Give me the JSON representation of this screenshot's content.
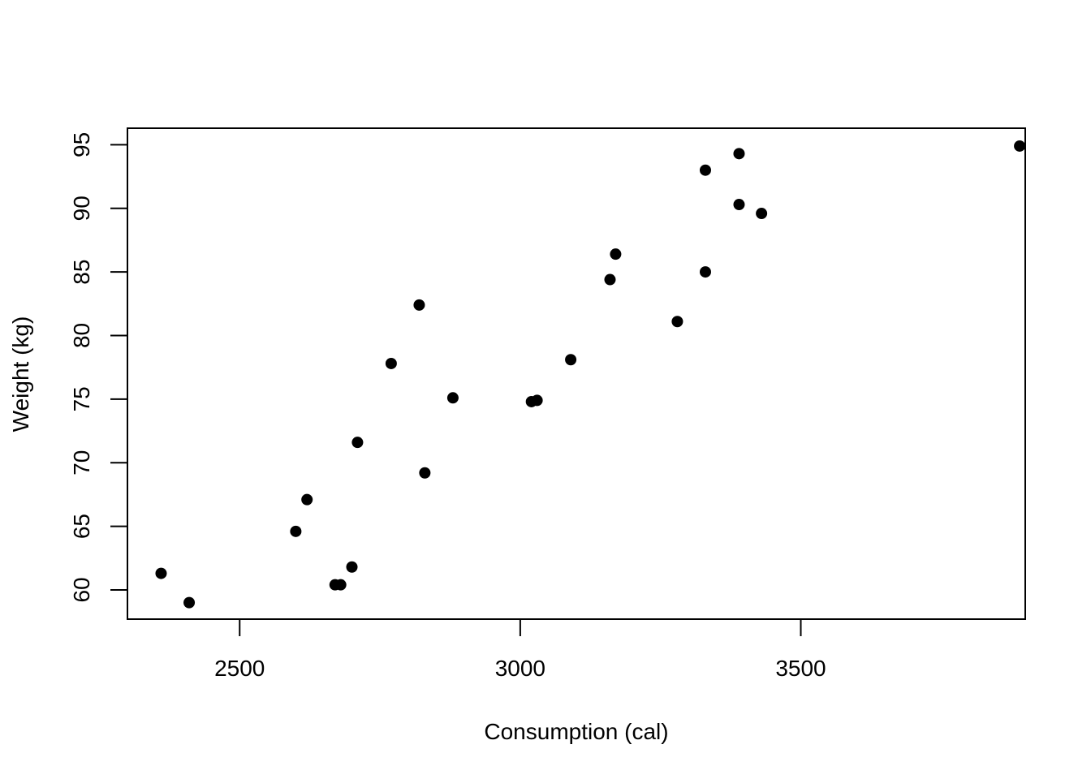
{
  "chart_data": {
    "type": "scatter",
    "title": "",
    "xlabel": "Consumption (cal)",
    "ylabel": "Weight (kg)",
    "xlim": [
      2300,
      3900
    ],
    "ylim": [
      57.7,
      96.3
    ],
    "xticks": [
      2500,
      3000,
      3500
    ],
    "yticks": [
      60,
      65,
      70,
      75,
      80,
      85,
      90,
      95
    ],
    "grid": false,
    "legend": "none",
    "point_color": "#000000",
    "points": [
      {
        "x": 2360,
        "y": 61.3
      },
      {
        "x": 2410,
        "y": 59.0
      },
      {
        "x": 2600,
        "y": 64.6
      },
      {
        "x": 2620,
        "y": 67.1
      },
      {
        "x": 2670,
        "y": 60.4
      },
      {
        "x": 2680,
        "y": 60.4
      },
      {
        "x": 2700,
        "y": 61.8
      },
      {
        "x": 2710,
        "y": 71.6
      },
      {
        "x": 2770,
        "y": 77.8
      },
      {
        "x": 2820,
        "y": 82.4
      },
      {
        "x": 2830,
        "y": 69.2
      },
      {
        "x": 2880,
        "y": 75.1
      },
      {
        "x": 3020,
        "y": 74.8
      },
      {
        "x": 3030,
        "y": 74.9
      },
      {
        "x": 3090,
        "y": 78.1
      },
      {
        "x": 3160,
        "y": 84.4
      },
      {
        "x": 3170,
        "y": 86.4
      },
      {
        "x": 3280,
        "y": 81.1
      },
      {
        "x": 3330,
        "y": 85.0
      },
      {
        "x": 3330,
        "y": 93.0
      },
      {
        "x": 3390,
        "y": 90.3
      },
      {
        "x": 3390,
        "y": 94.3
      },
      {
        "x": 3430,
        "y": 89.6
      },
      {
        "x": 3890,
        "y": 94.9
      }
    ]
  }
}
